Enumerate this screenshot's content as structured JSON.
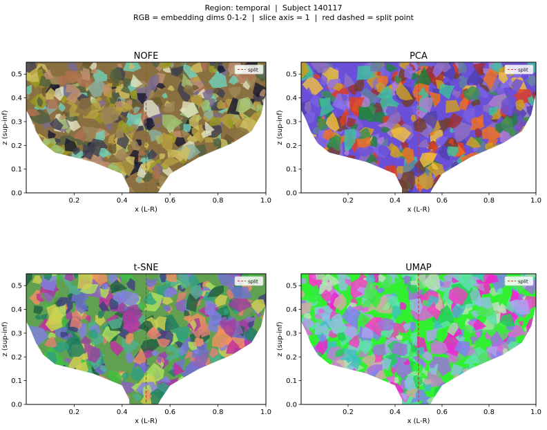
{
  "figure": {
    "title_line1": "Region: temporal  |  Subject 140117",
    "title_line2": "RGB = embedding dims 0-1-2  |  slice axis = 1  |  red dashed = split point"
  },
  "chart_data": [
    {
      "type": "heatmap",
      "title": "NOFE",
      "xlabel": "x (L-R)",
      "ylabel": "z (sup-inf)",
      "xlim": [
        0.0,
        1.0
      ],
      "ylim": [
        0.0,
        0.55
      ],
      "xticks": [
        "0.2",
        "0.4",
        "0.6",
        "0.8",
        "1.0"
      ],
      "yticks": [
        "0.0",
        "0.1",
        "0.2",
        "0.3",
        "0.4",
        "0.5"
      ],
      "split_x": 0.5,
      "legend": {
        "label": "split",
        "position": "top-right"
      },
      "palette": [
        "#8a7040",
        "#a08858",
        "#6a5a30",
        "#b8a040",
        "#9a9a20",
        "#7a6a90",
        "#c09070",
        "#404050",
        "#1a1a30",
        "#8ab0a0",
        "#70d0b8",
        "#d0c060",
        "#b07050",
        "#506040",
        "#e0e0c0",
        "#a0c070"
      ]
    },
    {
      "type": "heatmap",
      "title": "PCA",
      "xlabel": "x (L-R)",
      "ylabel": "z (sup-inf)",
      "xlim": [
        0.0,
        1.0
      ],
      "ylim": [
        0.0,
        0.55
      ],
      "xticks": [
        "0.2",
        "0.4",
        "0.6",
        "0.8",
        "1.0"
      ],
      "yticks": [
        "0.0",
        "0.1",
        "0.2",
        "0.3",
        "0.4",
        "0.5"
      ],
      "split_x": 0.5,
      "legend": {
        "label": "split",
        "position": "top-right"
      },
      "palette": [
        "#6a50d8",
        "#7a60e0",
        "#5040b0",
        "#8a70e8",
        "#3a9050",
        "#208040",
        "#40c0a0",
        "#6080a0",
        "#9070c0",
        "#e04020",
        "#f07020",
        "#d0a020",
        "#a03030",
        "#704030",
        "#b080d0",
        "#f0c040"
      ]
    },
    {
      "type": "heatmap",
      "title": "t-SNE",
      "xlabel": "x (L-R)",
      "ylabel": "z (sup-inf)",
      "xlim": [
        0.0,
        1.0
      ],
      "ylim": [
        0.0,
        0.55
      ],
      "xticks": [
        "0.2",
        "0.4",
        "0.6",
        "0.8",
        "1.0"
      ],
      "yticks": [
        "0.0",
        "0.1",
        "0.2",
        "0.3",
        "0.4",
        "0.5"
      ],
      "split_x": 0.5,
      "legend": {
        "label": "split",
        "position": "top-right"
      },
      "palette": [
        "#60a050",
        "#40c040",
        "#208060",
        "#9060c0",
        "#a040a0",
        "#c030a0",
        "#50b090",
        "#e08070",
        "#f09060",
        "#7070d0",
        "#b0e060",
        "#404080",
        "#30a080",
        "#d0d050",
        "#8080e0",
        "#206040"
      ]
    },
    {
      "type": "heatmap",
      "title": "UMAP",
      "xlabel": "x (L-R)",
      "ylabel": "z (sup-inf)",
      "xlim": [
        0.0,
        1.0
      ],
      "ylim": [
        0.0,
        0.55
      ],
      "xticks": [
        "0.2",
        "0.4",
        "0.6",
        "0.8",
        "1.0"
      ],
      "yticks": [
        "0.0",
        "0.1",
        "0.2",
        "0.3",
        "0.4",
        "0.5"
      ],
      "split_x": 0.5,
      "legend": {
        "label": "split",
        "position": "top-right"
      },
      "palette": [
        "#30f030",
        "#50e060",
        "#a070e0",
        "#8080f0",
        "#c080d0",
        "#f020d0",
        "#f040c0",
        "#60e0b0",
        "#a0e0a0",
        "#d0b0a0",
        "#40c0c0",
        "#b0a0f0",
        "#20d050",
        "#e060e0",
        "#90c0e0",
        "#c0e0c0"
      ]
    }
  ]
}
